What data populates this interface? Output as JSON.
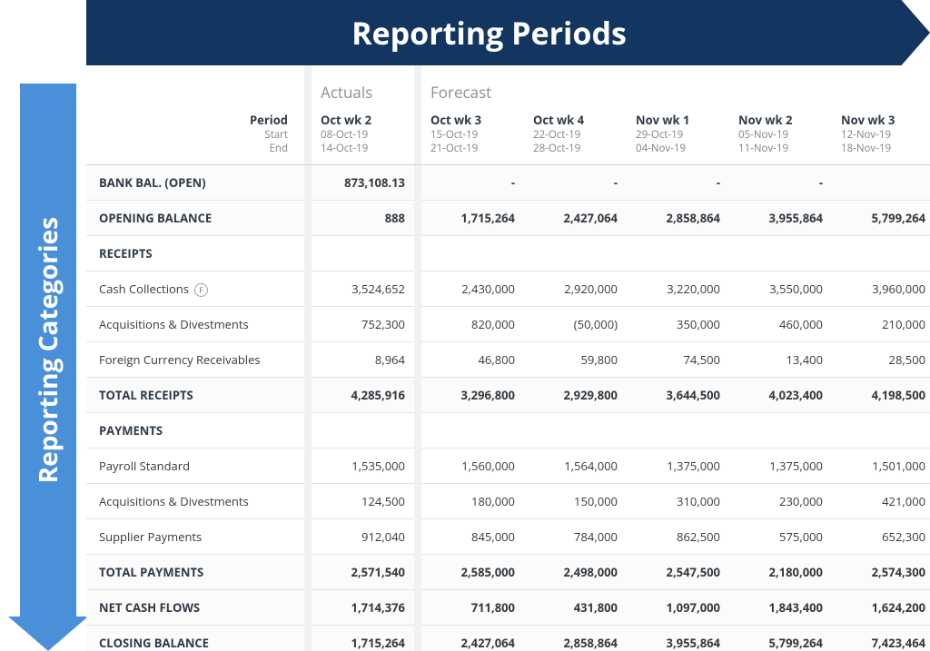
{
  "banners": {
    "top": "Reporting Periods",
    "left": "Reporting Categories"
  },
  "groups": {
    "actuals": "Actuals",
    "forecast": "Forecast"
  },
  "header_labels": {
    "period": "Period",
    "start": "Start",
    "end": "End"
  },
  "periods": [
    {
      "id": "oct2",
      "group": "actuals",
      "label": "Oct wk 2",
      "start": "08-Oct-19",
      "end": "14-Oct-19"
    },
    {
      "id": "oct3",
      "group": "forecast",
      "label": "Oct wk 3",
      "start": "15-Oct-19",
      "end": "21-Oct-19"
    },
    {
      "id": "oct4",
      "group": "forecast",
      "label": "Oct wk 4",
      "start": "22-Oct-19",
      "end": "28-Oct-19"
    },
    {
      "id": "nov1",
      "group": "forecast",
      "label": "Nov wk 1",
      "start": "29-Oct-19",
      "end": "04-Nov-19"
    },
    {
      "id": "nov2",
      "group": "forecast",
      "label": "Nov wk 2",
      "start": "05-Nov-19",
      "end": "11-Nov-19"
    },
    {
      "id": "nov3",
      "group": "forecast",
      "label": "Nov wk 3",
      "start": "12-Nov-19",
      "end": "18-Nov-19"
    }
  ],
  "rows": [
    {
      "id": "bankbal",
      "label": "BANK BAL. (Open)",
      "style": "bold section",
      "values": [
        "873,108.13",
        "-",
        "-",
        "-",
        "-",
        ""
      ]
    },
    {
      "id": "opening",
      "label": "OPENING BALANCE",
      "style": "bold section",
      "values": [
        "888",
        "1,715,264",
        "2,427,064",
        "2,858,864",
        "3,955,864",
        "5,799,264"
      ]
    },
    {
      "id": "receipts_hdr",
      "label": "RECEIPTS",
      "style": "section",
      "values": [
        "",
        "",
        "",
        "",
        "",
        ""
      ]
    },
    {
      "id": "cashcoll",
      "label": "Cash Collections",
      "badge": "F",
      "style": "",
      "values": [
        "3,524,652",
        "2,430,000",
        "2,920,000",
        "3,220,000",
        "3,550,000",
        "3,960,000"
      ]
    },
    {
      "id": "acqdiv_r",
      "label": "Acquisitions & Divestments",
      "style": "",
      "values": [
        "752,300",
        "820,000",
        "(50,000)",
        "350,000",
        "460,000",
        "210,000"
      ]
    },
    {
      "id": "fxrecv",
      "label": "Foreign Currency Receivables",
      "style": "",
      "values": [
        "8,964",
        "46,800",
        "59,800",
        "74,500",
        "13,400",
        "28,500"
      ]
    },
    {
      "id": "totreceipts",
      "label": "TOTAL RECEIPTS",
      "style": "bold section",
      "values": [
        "4,285,916",
        "3,296,800",
        "2,929,800",
        "3,644,500",
        "4,023,400",
        "4,198,500"
      ]
    },
    {
      "id": "payments_hdr",
      "label": "PAYMENTS",
      "style": "section",
      "values": [
        "",
        "",
        "",
        "",
        "",
        ""
      ]
    },
    {
      "id": "payroll",
      "label": "Payroll Standard",
      "style": "",
      "values": [
        "1,535,000",
        "1,560,000",
        "1,564,000",
        "1,375,000",
        "1,375,000",
        "1,501,000"
      ]
    },
    {
      "id": "acqdiv_p",
      "label": "Acquisitions & Divestments",
      "style": "",
      "values": [
        "124,500",
        "180,000",
        "150,000",
        "310,000",
        "230,000",
        "421,000"
      ]
    },
    {
      "id": "supplier",
      "label": "Supplier Payments",
      "style": "",
      "values": [
        "912,040",
        "845,000",
        "784,000",
        "862,500",
        "575,000",
        "652,300"
      ]
    },
    {
      "id": "totpayments",
      "label": "TOTAL PAYMENTS",
      "style": "bold section",
      "values": [
        "2,571,540",
        "2,585,000",
        "2,498,000",
        "2,547,500",
        "2,180,000",
        "2,574,300"
      ]
    },
    {
      "id": "netcash",
      "label": "NET CASH FLOWS",
      "style": "bold section",
      "values": [
        "1,714,376",
        "711,800",
        "431,800",
        "1,097,000",
        "1,843,400",
        "1,624,200"
      ]
    },
    {
      "id": "closing",
      "label": "CLOSING BALANCE",
      "style": "bold section",
      "values": [
        "1,715,264",
        "2,427,064",
        "2,858,864",
        "3,955,864",
        "5,799,264",
        "7,423,464"
      ]
    }
  ],
  "colors": {
    "top_banner": "#12365f",
    "left_banner": "#4a90d9",
    "text": "#333a40",
    "muted": "#8a9096",
    "border": "#e0e3e6",
    "gap": "#f0f1f2"
  }
}
